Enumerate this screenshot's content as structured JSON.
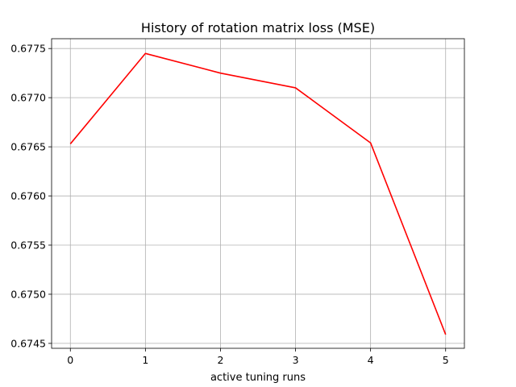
{
  "chart_data": {
    "type": "line",
    "title": "History of rotation matrix loss (MSE)",
    "xlabel": "active tuning runs",
    "ylabel": "",
    "x": [
      0,
      1,
      2,
      3,
      4,
      5
    ],
    "series": [
      {
        "values": [
          0.67653,
          0.67745,
          0.67725,
          0.6771,
          0.67654,
          0.67459
        ],
        "color": "#ff0000"
      }
    ],
    "xlim": [
      -0.25,
      5.25
    ],
    "ylim": [
      0.67445,
      0.6776
    ],
    "xticks": [
      0,
      1,
      2,
      3,
      4,
      5
    ],
    "xtick_labels": [
      "0",
      "1",
      "2",
      "3",
      "4",
      "5"
    ],
    "yticks": [
      0.6745,
      0.675,
      0.6755,
      0.676,
      0.6765,
      0.677,
      0.6775
    ],
    "ytick_labels": [
      "0.6745",
      "0.6750",
      "0.6755",
      "0.6760",
      "0.6765",
      "0.6770",
      "0.6775"
    ],
    "grid": true
  }
}
